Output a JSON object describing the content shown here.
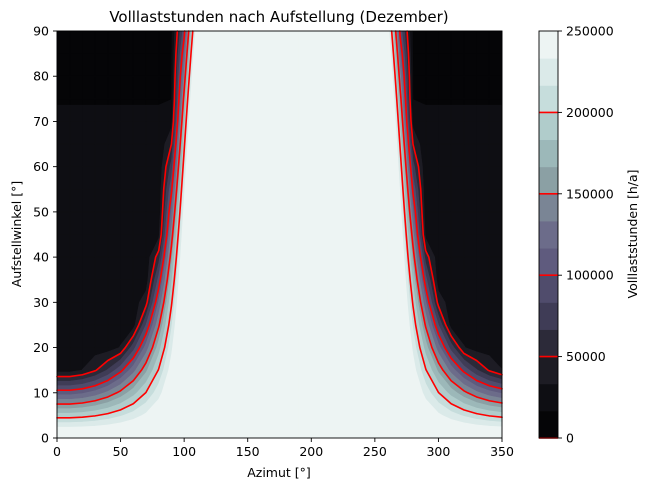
{
  "chart_data": {
    "type": "heatmap",
    "subtype": "filled-contour",
    "title": "Volllaststunden nach Aufstellung (Dezember)",
    "xlabel": "Azimut [°]",
    "ylabel": "Aufstellwinkel [°]",
    "colorbar_label": "Volllaststunden [h/a]",
    "xlim": [
      0,
      350
    ],
    "ylim": [
      0,
      90
    ],
    "x_ticks": [
      0,
      50,
      100,
      150,
      200,
      250,
      300,
      350
    ],
    "y_ticks": [
      0,
      10,
      20,
      30,
      40,
      50,
      60,
      70,
      80,
      90
    ],
    "colorbar_ticks": [
      0,
      50000,
      100000,
      150000,
      200000,
      250000
    ],
    "colorbar_range": [
      0,
      250000
    ],
    "contour_levels": [
      0,
      16667,
      33333,
      50000,
      66667,
      83333,
      100000,
      116667,
      133333,
      150000,
      166667,
      183333,
      200000,
      216667,
      233333,
      250000
    ],
    "level_colors": [
      "#050507",
      "#0e0e13",
      "#1d1c24",
      "#2c2a39",
      "#3f3c56",
      "#504c6c",
      "#5f5b7e",
      "#6c6c8a",
      "#7a8595",
      "#8ba0a4",
      "#9cb8b9",
      "#b0cccb",
      "#c6dddc",
      "#dbeae9",
      "#edf4f3"
    ],
    "line_levels": [
      0,
      50000,
      100000,
      150000,
      200000
    ],
    "line_color": "#ff0000",
    "x_grid": [
      0,
      10,
      20,
      30,
      40,
      50,
      60,
      70,
      80,
      90,
      100,
      110,
      120,
      130,
      140,
      150,
      160,
      170,
      180,
      190,
      200,
      210,
      220,
      230,
      240,
      250,
      260,
      270,
      280,
      290,
      300,
      310,
      320,
      330,
      340,
      350
    ],
    "y_grid": [
      0,
      5,
      10,
      15,
      20,
      25,
      30,
      35,
      40,
      45,
      50,
      55,
      60,
      65,
      70,
      75,
      80,
      85,
      90
    ],
    "grid": false
  }
}
